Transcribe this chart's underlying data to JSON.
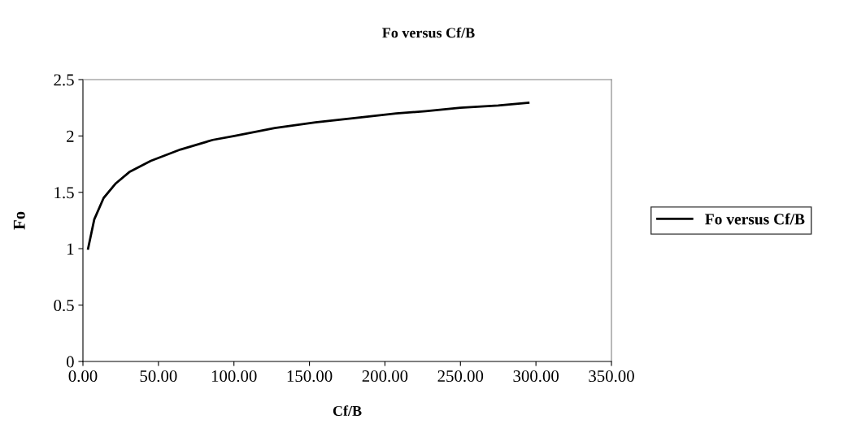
{
  "chart_data": {
    "type": "line",
    "title": "Fo versus Cf/B",
    "xlabel": "Cf/B",
    "ylabel": "Fo",
    "series": [
      {
        "name": "Fo versus Cf/B",
        "color": "#000000",
        "x": [
          3.4,
          7.5,
          13.7,
          21.8,
          30.7,
          45,
          64.6,
          86,
          100.3,
          127,
          154,
          181,
          207.5,
          227,
          250,
          275,
          295
        ],
        "values": [
          1.0,
          1.26,
          1.45,
          1.58,
          1.68,
          1.78,
          1.88,
          1.965,
          2.0,
          2.07,
          2.12,
          2.16,
          2.2,
          2.22,
          2.25,
          2.27,
          2.295
        ]
      }
    ],
    "xlim": [
      0,
      350
    ],
    "ylim": [
      0,
      2.5
    ],
    "xticks": [
      {
        "value": 0,
        "label": "0.00"
      },
      {
        "value": 50,
        "label": "50.00"
      },
      {
        "value": 100,
        "label": "100.00"
      },
      {
        "value": 150,
        "label": "150.00"
      },
      {
        "value": 200,
        "label": "200.00"
      },
      {
        "value": 250,
        "label": "250.00"
      },
      {
        "value": 300,
        "label": "300.00"
      },
      {
        "value": 350,
        "label": "350.00"
      }
    ],
    "yticks": [
      0,
      0.5,
      1,
      1.5,
      2,
      2.5
    ],
    "legend": "right",
    "grid": false,
    "marker": "none",
    "line_style": "solid"
  }
}
